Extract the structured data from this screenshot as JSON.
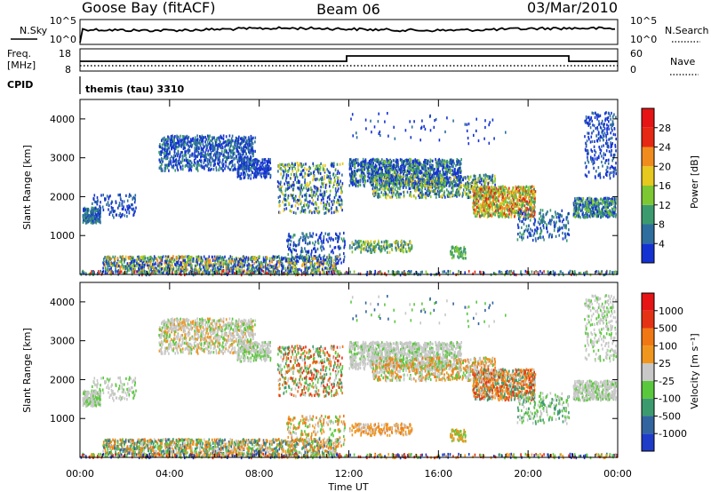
{
  "header": {
    "station": "Goose Bay (fitACF)",
    "beam": "Beam 06",
    "date": "03/Mar/2010"
  },
  "strip": {
    "left_top_label": "N.Sky",
    "left_top_ticks": [
      "10^5",
      "10^0"
    ],
    "right_top_label": "N.Search",
    "right_top_ticks": [
      "10^5",
      "10^0"
    ],
    "freq_label_1": "Freq.",
    "freq_label_2": "[MHz]",
    "freq_ticks": [
      "18",
      "8"
    ],
    "nave_label": "Nave",
    "nave_ticks": [
      "60",
      "0"
    ],
    "cpid_label": "CPID",
    "cpid_text": "themis (tau) 3310"
  },
  "chart_data": [
    {
      "type": "heatmap",
      "name": "power",
      "ylabel": "Slant Range [km]",
      "y_ticks": [
        1000,
        2000,
        3000,
        4000
      ],
      "ylim": [
        0,
        4500
      ],
      "colorbar_label": "Power [dB]",
      "colorbar_ticks": [
        "4",
        "8",
        "12",
        "16",
        "20",
        "24",
        "28"
      ],
      "colorbar_colors": [
        "#1432d2",
        "#2d6e9e",
        "#3c9b6e",
        "#7dc832",
        "#e6c81e",
        "#f08c1e",
        "#e62814",
        "#e61414"
      ]
    },
    {
      "type": "heatmap",
      "name": "velocity",
      "ylabel": "Slant Range [km]",
      "y_ticks": [
        1000,
        2000,
        3000,
        4000
      ],
      "ylim": [
        0,
        4500
      ],
      "colorbar_label": "Velocity [m s⁻¹]",
      "colorbar_ticks": [
        "1000",
        "500",
        "100",
        "25",
        "-25",
        "-100",
        "-500",
        "-1000"
      ],
      "colorbar_colors": [
        "#1e3cc8",
        "#3264a0",
        "#3c9b6e",
        "#5ac83c",
        "#c8c8c8",
        "#f0961e",
        "#f07814",
        "#e63214",
        "#e61414"
      ]
    }
  ],
  "x_axis": {
    "label": "Time UT",
    "ticks": [
      "00:00",
      "04:00",
      "08:00",
      "12:00",
      "16:00",
      "20:00",
      "00:00"
    ]
  }
}
